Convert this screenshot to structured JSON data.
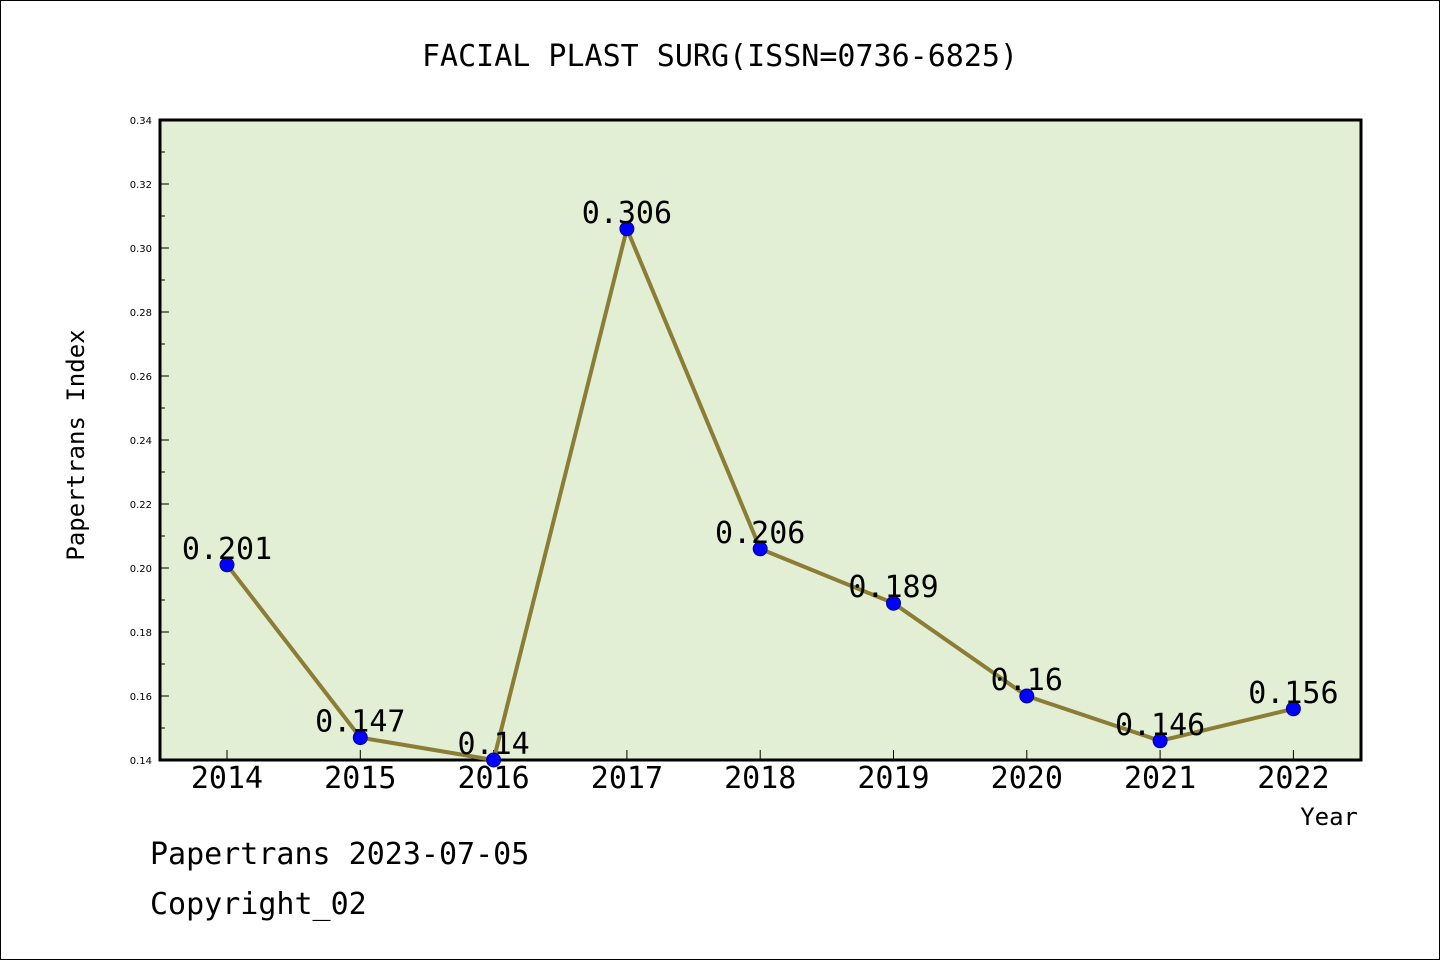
{
  "chart_data": {
    "type": "line",
    "title": "FACIAL PLAST SURG(ISSN=0736-6825)",
    "xlabel": "Year",
    "ylabel": "Papertrans Index",
    "categories": [
      "2014",
      "2015",
      "2016",
      "2017",
      "2018",
      "2019",
      "2020",
      "2021",
      "2022"
    ],
    "series": [
      {
        "values": [
          0.201,
          0.147,
          0.14,
          0.306,
          0.206,
          0.189,
          0.16,
          0.146,
          0.156
        ],
        "labels": [
          "0.201",
          "0.147",
          "0.14",
          "0.306",
          "0.206",
          "0.189",
          "0.16",
          "0.146",
          "0.156"
        ]
      }
    ],
    "ylim": [
      0.14,
      0.34
    ],
    "yticks": [
      "0.14",
      "0.16",
      "0.18",
      "0.20",
      "0.22",
      "0.24",
      "0.26",
      "0.28",
      "0.30",
      "0.32",
      "0.34"
    ],
    "grid": false,
    "legend": "none"
  },
  "colors": {
    "plot_background": "#e2efd4",
    "line": "#8b7d35",
    "marker_fill": "#0000ff",
    "marker_edge": "#00008b"
  },
  "footer": {
    "line1": "Papertrans 2023-07-05",
    "line2": "Copyright_02"
  }
}
